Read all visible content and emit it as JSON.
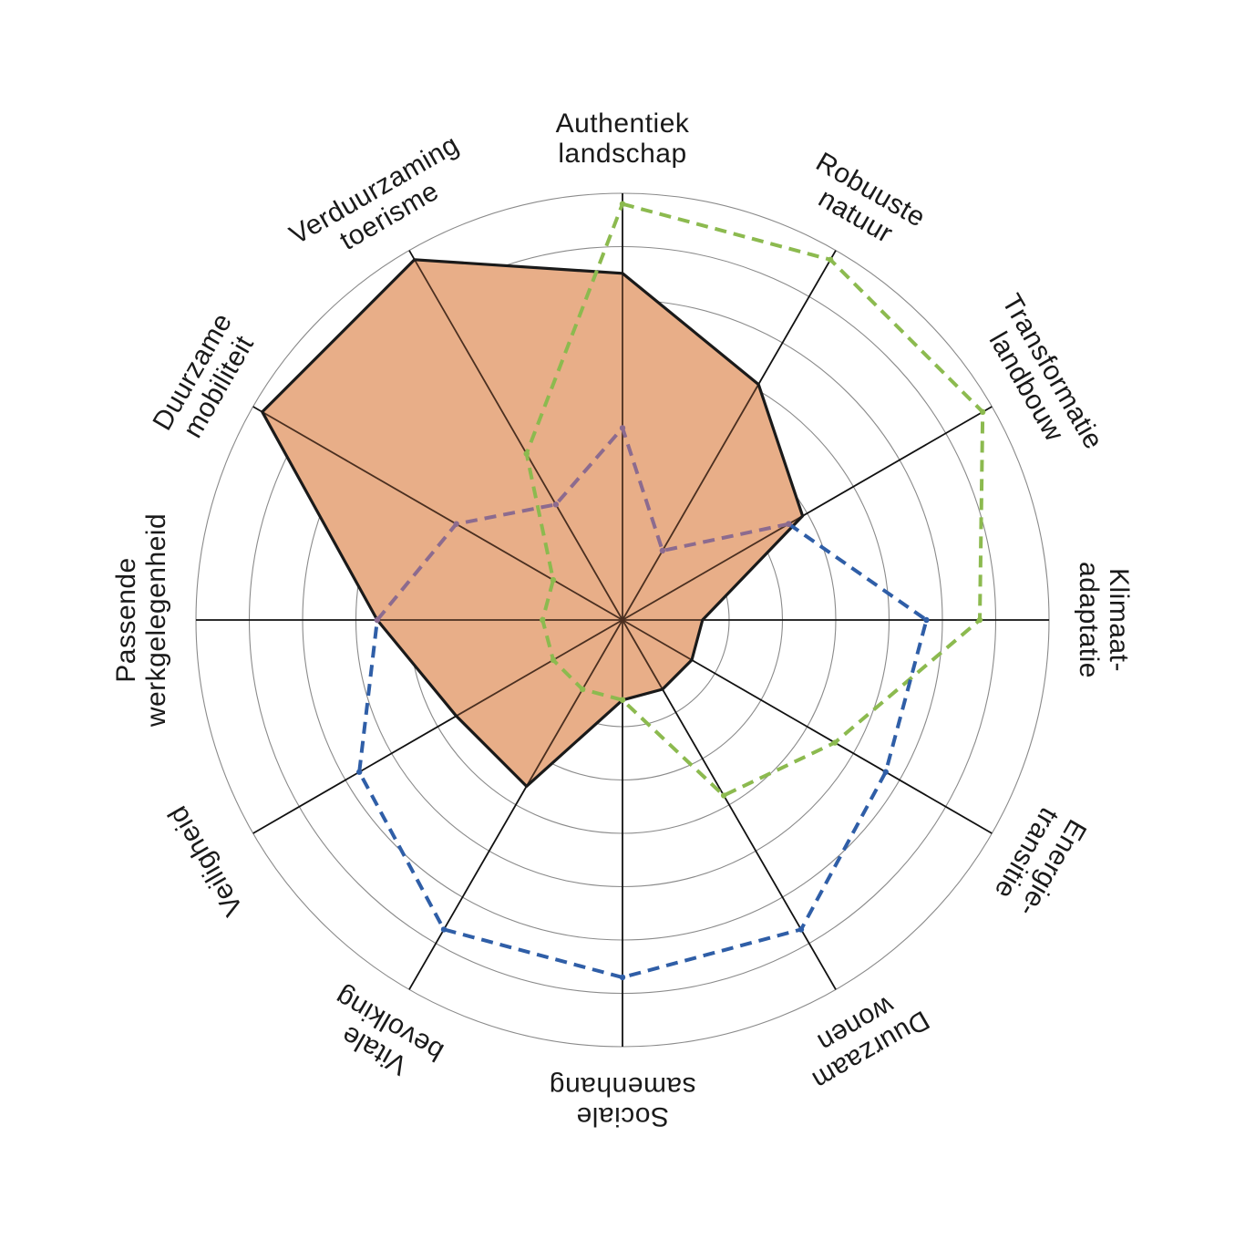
{
  "chart_data": {
    "type": "radar",
    "axes": [
      {
        "id": "authentiek-landschap",
        "label_lines": [
          "Authentiek",
          "landschap"
        ]
      },
      {
        "id": "robuuste-natuur",
        "label_lines": [
          "Robuuste",
          "natuur"
        ]
      },
      {
        "id": "transformatie-landbouw",
        "label_lines": [
          "Transformatie",
          "landbouw"
        ]
      },
      {
        "id": "klimaatadaptatie",
        "label_lines": [
          "Klimaat-",
          "adaptatie"
        ]
      },
      {
        "id": "energietransitie",
        "label_lines": [
          "Energie-",
          "transitie"
        ]
      },
      {
        "id": "duurzaam-wonen",
        "label_lines": [
          "Duurzaam",
          "wonen"
        ]
      },
      {
        "id": "sociale-samenhang",
        "label_lines": [
          "Sociale",
          "samenhang"
        ]
      },
      {
        "id": "vitale-bevolking",
        "label_lines": [
          "Vitale",
          "bevolking"
        ]
      },
      {
        "id": "veiligheid",
        "label_lines": [
          "Veiligheid"
        ]
      },
      {
        "id": "passende-werkgelegenheid",
        "label_lines": [
          "Passende",
          "werkgelegenheid"
        ]
      },
      {
        "id": "duurzame-mobiliteit",
        "label_lines": [
          "Duurzame",
          "mobiliteit"
        ]
      },
      {
        "id": "verduurzaming-toerisme",
        "label_lines": [
          "Verduurzaming",
          "toerisme"
        ]
      }
    ],
    "scale": {
      "min": 0,
      "max": 8,
      "rings": 8
    },
    "series": [
      {
        "id": "filled",
        "style": "filled-area",
        "fill": "#e8ae88",
        "stroke": "#1a1a1a",
        "values": [
          6.5,
          5.1,
          3.9,
          1.5,
          1.5,
          1.5,
          1.5,
          3.6,
          3.6,
          4.6,
          7.8,
          7.8
        ]
      },
      {
        "id": "green",
        "style": "dashed",
        "stroke": "#8cba4f",
        "values": [
          7.8,
          7.8,
          7.8,
          6.7,
          4.6,
          3.8,
          1.5,
          1.5,
          1.5,
          1.5,
          1.5,
          3.6
        ]
      },
      {
        "id": "blue",
        "style": "dashed",
        "stroke": "#2f5ea7",
        "values": [
          null,
          null,
          3.6,
          5.7,
          5.7,
          6.7,
          6.7,
          6.7,
          5.7,
          4.6,
          null,
          null
        ]
      },
      {
        "id": "purple",
        "style": "dashed",
        "stroke": "#8c6b8f",
        "values": [
          3.6,
          1.5,
          3.6,
          null,
          null,
          null,
          null,
          null,
          null,
          4.6,
          3.6,
          2.5
        ]
      }
    ],
    "colors": {
      "grid_ring": "#8a8a8a",
      "axis_line": "#111111",
      "axis_line_inside_fill": "#4a2f20"
    }
  }
}
